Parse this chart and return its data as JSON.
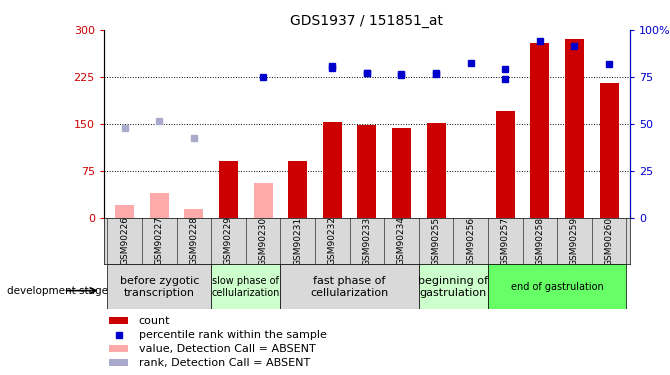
{
  "title": "GDS1937 / 151851_at",
  "samples": [
    "GSM90226",
    "GSM90227",
    "GSM90228",
    "GSM90229",
    "GSM90230",
    "GSM90231",
    "GSM90232",
    "GSM90233",
    "GSM90234",
    "GSM90255",
    "GSM90256",
    "GSM90257",
    "GSM90258",
    "GSM90259",
    "GSM90260"
  ],
  "count_present": [
    null,
    null,
    null,
    90,
    null,
    90,
    153,
    148,
    143,
    152,
    null,
    170,
    280,
    285,
    215
  ],
  "count_absent": [
    20,
    40,
    13,
    null,
    55,
    null,
    null,
    null,
    null,
    null,
    null,
    null,
    null,
    null,
    null
  ],
  "rank_present_dots": [
    null,
    null,
    null,
    null,
    225,
    null,
    240,
    232,
    230,
    231,
    null,
    222,
    null,
    null,
    null
  ],
  "rank_absent_dots": [
    143,
    155,
    128,
    null,
    null,
    null,
    null,
    null,
    null,
    null,
    null,
    null,
    null,
    null,
    null
  ],
  "rank_present_dots2": [
    null,
    null,
    null,
    null,
    null,
    null,
    242,
    232,
    228,
    230,
    248,
    237,
    283,
    275,
    246
  ],
  "development_stages": [
    {
      "label": "before zygotic\ntranscription",
      "start": 0,
      "end": 3,
      "color": "#d9d9d9",
      "fontsize": 8
    },
    {
      "label": "slow phase of\ncellularization",
      "start": 3,
      "end": 5,
      "color": "#ccffcc",
      "fontsize": 7
    },
    {
      "label": "fast phase of\ncellularization",
      "start": 5,
      "end": 9,
      "color": "#d9d9d9",
      "fontsize": 8
    },
    {
      "label": "beginning of\ngastrulation",
      "start": 9,
      "end": 11,
      "color": "#ccffcc",
      "fontsize": 8
    },
    {
      "label": "end of gastrulation",
      "start": 11,
      "end": 15,
      "color": "#66ff66",
      "fontsize": 7
    }
  ],
  "bar_color_present": "#cc0000",
  "bar_color_absent": "#ffaaaa",
  "dot_color_present": "#0000cc",
  "dot_color_absent": "#aaaacc",
  "ylim_left": [
    0,
    300
  ],
  "ylim_right": [
    0,
    100
  ],
  "yticks_left": [
    0,
    75,
    150,
    225,
    300
  ],
  "yticks_right": [
    0,
    25,
    50,
    75,
    100
  ],
  "ytick_labels_left": [
    "0",
    "75",
    "150",
    "225",
    "300"
  ],
  "ytick_labels_right": [
    "0",
    "25",
    "50",
    "75",
    "100%"
  ]
}
